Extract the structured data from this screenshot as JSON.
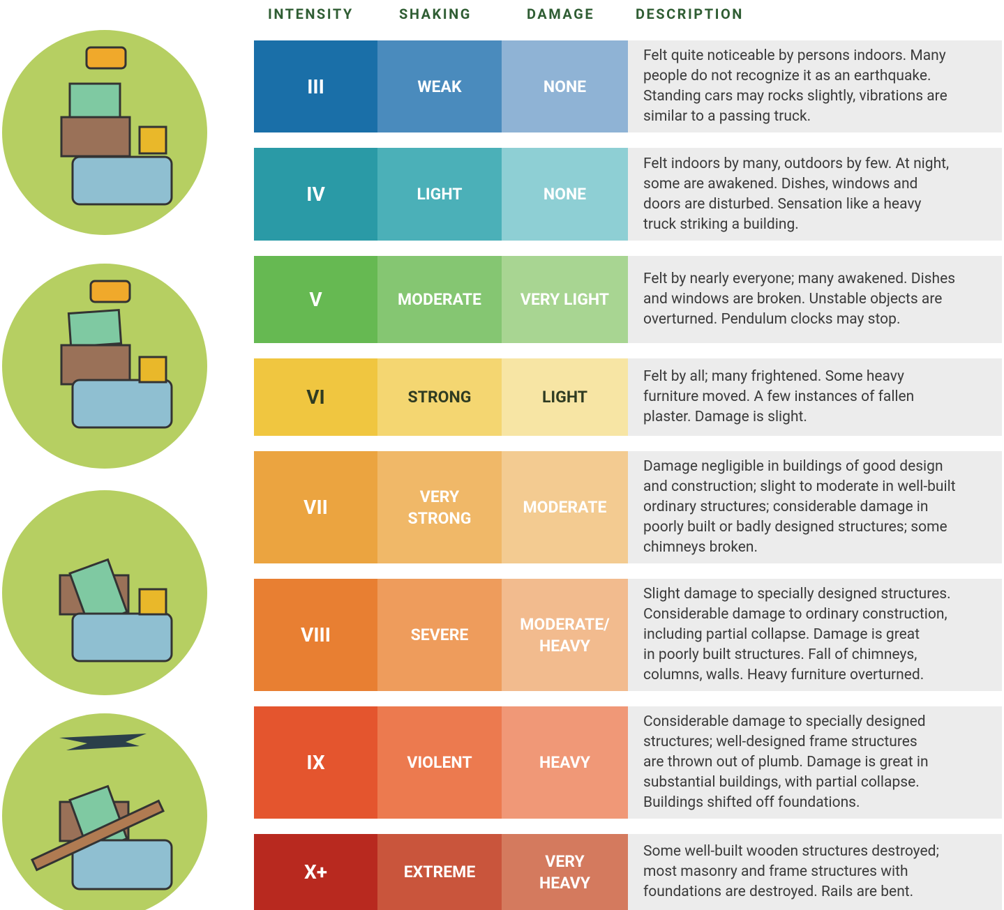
{
  "header": {
    "intensity": "INTENSITY",
    "shaking": "SHAKING",
    "damage": "DAMAGE",
    "description": "DESCRIPTION"
  },
  "rows": [
    {
      "intensity": "III",
      "shaking": [
        "WEAK"
      ],
      "damage": [
        "NONE"
      ],
      "description": [
        "Felt quite noticeable by persons indoors. Many",
        "people do not recognize it as an earthquake.",
        "Standing cars may rocks slightly, vibrations are",
        "similar to a passing truck."
      ]
    },
    {
      "intensity": "IV",
      "shaking": [
        "LIGHT"
      ],
      "damage": [
        "NONE"
      ],
      "description": [
        "Felt indoors by many, outdoors by few. At night,",
        "some are awakened. Dishes, windows and",
        "doors are disturbed. Sensation like a heavy",
        "truck striking a building."
      ]
    },
    {
      "intensity": "V",
      "shaking": [
        "MODERATE"
      ],
      "damage": [
        "VERY LIGHT"
      ],
      "description": [
        "Felt by nearly everyone; many awakened. Dishes",
        "and windows are broken. Unstable objects are",
        "overturned. Pendulum clocks may stop."
      ]
    },
    {
      "intensity": "VI",
      "shaking": [
        "STRONG"
      ],
      "damage": [
        "LIGHT"
      ],
      "description": [
        "Felt by all; many frightened. Some heavy",
        "furniture moved. A few instances of fallen",
        "plaster. Damage is slight."
      ]
    },
    {
      "intensity": "VII",
      "shaking": [
        "VERY",
        "STRONG"
      ],
      "damage": [
        "MODERATE"
      ],
      "description": [
        "Damage negligible in buildings of good design",
        "and construction; slight to moderate in well-built",
        "ordinary structures; considerable damage in",
        "poorly built or badly designed structures; some",
        "chimneys broken."
      ]
    },
    {
      "intensity": "VIII",
      "shaking": [
        "SEVERE"
      ],
      "damage": [
        "MODERATE/",
        "HEAVY"
      ],
      "description": [
        "Slight damage to specially designed structures.",
        "Considerable damage to ordinary construction,",
        "including partial collapse. Damage is great",
        "in poorly built structures. Fall of chimneys,",
        "columns, walls. Heavy furniture overturned."
      ]
    },
    {
      "intensity": "IX",
      "shaking": [
        "VIOLENT"
      ],
      "damage": [
        "HEAVY"
      ],
      "description": [
        "Considerable damage to specially designed",
        "structures; well-designed frame structures",
        "are thrown out of plumb. Damage is great in",
        "substantial buildings, with partial collapse.",
        "Buildings shifted off foundations."
      ]
    },
    {
      "intensity": "X+",
      "shaking": [
        "EXTREME"
      ],
      "damage": [
        "VERY",
        "HEAVY"
      ],
      "description": [
        "Some well-built wooden structures destroyed;",
        "most masonry and frame structures with",
        "foundations are destroyed. Rails are bent."
      ]
    }
  ]
}
